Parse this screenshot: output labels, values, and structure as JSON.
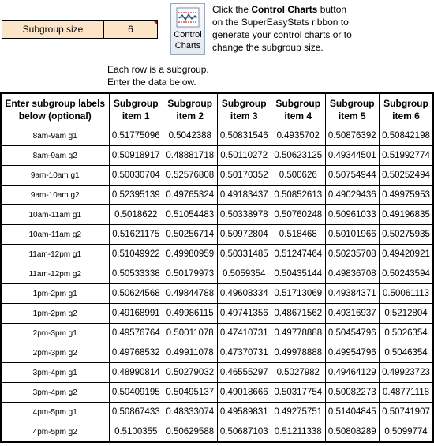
{
  "subgroup_size": {
    "label": "Subgroup size",
    "value": 6
  },
  "button": {
    "label": "Control Charts"
  },
  "instructions": {
    "before": "Click the ",
    "bold": "Control Charts",
    "after": " button on the SuperEasyStats ribbon to generate your control charts or to change the subgroup size."
  },
  "notes": [
    "Each row is a subgroup.",
    "Enter the data below."
  ],
  "table": {
    "header": [
      "Enter subgroup labels below (optional)",
      "Subgroup item 1",
      "Subgroup item 2",
      "Subgroup item 3",
      "Subgroup item 4",
      "Subgroup item 5",
      "Subgroup item 6"
    ],
    "rows": [
      [
        "8am-9am g1",
        0.51775096,
        0.5042388,
        0.50831546,
        0.4935702,
        0.50876392,
        0.50842198
      ],
      [
        "8am-9am g2",
        0.50918917,
        0.48881718,
        0.50110272,
        0.50623125,
        0.49344501,
        0.51992774
      ],
      [
        "9am-10am g1",
        0.50030704,
        0.52576808,
        0.50170352,
        0.500626,
        0.50754944,
        0.50252494
      ],
      [
        "9am-10am g2",
        0.52395139,
        0.49765324,
        0.49183437,
        0.50852613,
        0.49029436,
        0.49975953
      ],
      [
        "10am-11am g1",
        0.5018622,
        0.51054483,
        0.50338978,
        0.50760248,
        0.50961033,
        0.49196835
      ],
      [
        "10am-11am g2",
        0.51621175,
        0.50256714,
        0.50972804,
        0.518468,
        0.50101966,
        0.50275935
      ],
      [
        "11am-12pm g1",
        0.51049922,
        0.49980959,
        0.50331485,
        0.51247464,
        0.50235708,
        0.49420921
      ],
      [
        "11am-12pm g2",
        0.50533338,
        0.50179973,
        0.5059354,
        0.50435144,
        0.49836708,
        0.50243594
      ],
      [
        "1pm-2pm g1",
        0.50624568,
        0.49844788,
        0.49608334,
        0.51713069,
        0.49384371,
        0.50061113
      ],
      [
        "1pm-2pm g2",
        0.49168991,
        0.49986115,
        0.49741356,
        0.48671562,
        0.49316937,
        0.5212804
      ],
      [
        "2pm-3pm g1",
        0.49576764,
        0.50011078,
        0.47410731,
        0.49778888,
        0.50454796,
        0.5026354
      ],
      [
        "2pm-3pm g2",
        0.49768532,
        0.49911078,
        0.47370731,
        0.49978888,
        0.49954796,
        0.5046354
      ],
      [
        "3pm-4pm g1",
        0.48990814,
        0.50279032,
        0.46555297,
        0.5027982,
        0.49464129,
        0.49923723
      ],
      [
        "3pm-4pm g2",
        0.50409195,
        0.50495137,
        0.49018666,
        0.50317754,
        0.50082273,
        0.48771118
      ],
      [
        "4pm-5pm g1",
        0.50867433,
        0.48333074,
        0.49589831,
        0.49275751,
        0.51404845,
        0.50741907
      ],
      [
        "4pm-5pm g2",
        0.5100355,
        0.50629588,
        0.50687103,
        0.51211338,
        0.50808289,
        0.5099774
      ]
    ]
  }
}
